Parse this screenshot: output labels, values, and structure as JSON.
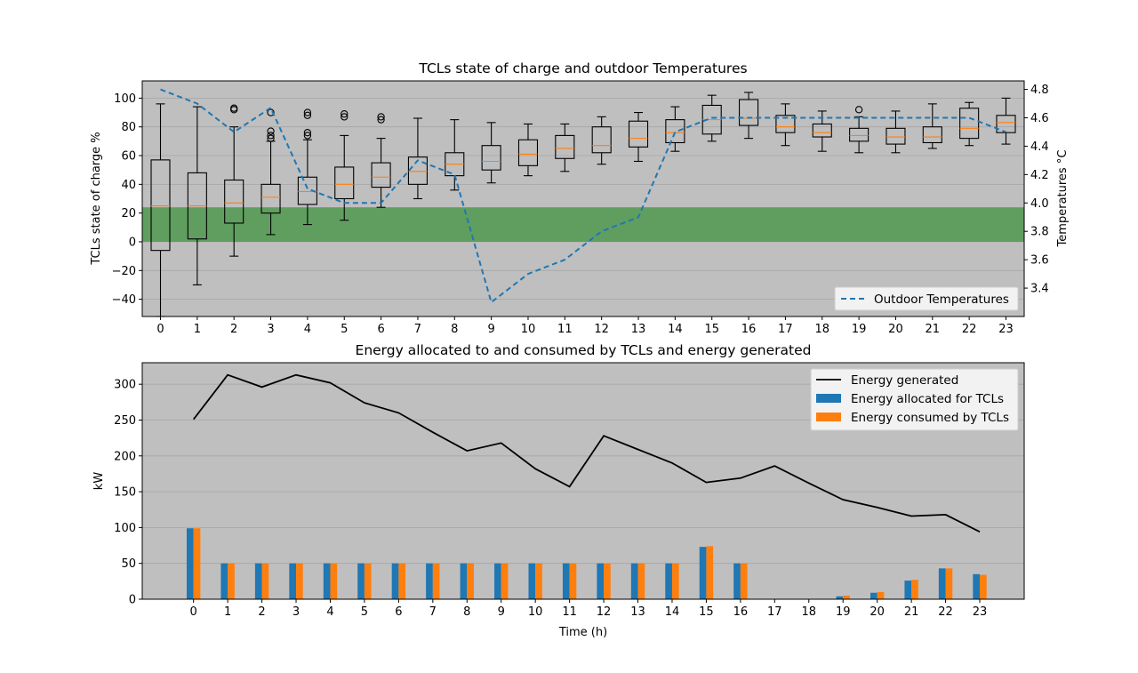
{
  "chart_data": [
    {
      "type": "box",
      "title": "TCLs state of charge and outdoor Temperatures",
      "xlabel": "",
      "ylabel": "TCLs state of charge %",
      "y2label": "Temperatures °C",
      "categories": [
        "0",
        "1",
        "2",
        "3",
        "4",
        "5",
        "6",
        "7",
        "8",
        "9",
        "10",
        "11",
        "12",
        "13",
        "14",
        "15",
        "16",
        "17",
        "18",
        "19",
        "20",
        "21",
        "22",
        "23"
      ],
      "ylim": [
        -52,
        112
      ],
      "y2lim": [
        3.2,
        4.86
      ],
      "yticks": [
        "−40",
        "−20",
        "0",
        "20",
        "40",
        "60",
        "80",
        "100"
      ],
      "y2ticks": [
        "3.4",
        "3.6",
        "3.8",
        "4.0",
        "4.2",
        "4.4",
        "4.6",
        "4.8"
      ],
      "band": {
        "from": 0,
        "to": 24,
        "color": "#5f9e5f"
      },
      "boxes": [
        {
          "whislo": -52,
          "q1": -6,
          "med": 25,
          "q3": 57,
          "whishi": 96,
          "fliers": []
        },
        {
          "whislo": -30,
          "q1": 2,
          "med": 25,
          "q3": 48,
          "whishi": 94,
          "fliers": []
        },
        {
          "whislo": -10,
          "q1": 13,
          "med": 27,
          "q3": 43,
          "whishi": 80,
          "fliers": [
            92,
            93
          ]
        },
        {
          "whislo": 5,
          "q1": 20,
          "med": 31,
          "q3": 40,
          "whishi": 70,
          "fliers": [
            72,
            74,
            77,
            90
          ]
        },
        {
          "whislo": 12,
          "q1": 26,
          "med": 35,
          "q3": 45,
          "whishi": 71,
          "fliers": [
            74,
            76,
            88,
            90
          ]
        },
        {
          "whislo": 15,
          "q1": 30,
          "med": 40,
          "q3": 52,
          "whishi": 74,
          "fliers": [
            87,
            89
          ]
        },
        {
          "whislo": 24,
          "q1": 38,
          "med": 45,
          "q3": 55,
          "whishi": 72,
          "fliers": [
            85,
            87
          ]
        },
        {
          "whislo": 30,
          "q1": 40,
          "med": 49,
          "q3": 59,
          "whishi": 86,
          "fliers": []
        },
        {
          "whislo": 36,
          "q1": 46,
          "med": 54,
          "q3": 62,
          "whishi": 85,
          "fliers": []
        },
        {
          "whislo": 41,
          "q1": 50,
          "med": 56,
          "q3": 67,
          "whishi": 83,
          "fliers": []
        },
        {
          "whislo": 46,
          "q1": 53,
          "med": 61,
          "q3": 71,
          "whishi": 82,
          "fliers": []
        },
        {
          "whislo": 49,
          "q1": 58,
          "med": 65,
          "q3": 74,
          "whishi": 82,
          "fliers": []
        },
        {
          "whislo": 54,
          "q1": 62,
          "med": 67,
          "q3": 80,
          "whishi": 87,
          "fliers": []
        },
        {
          "whislo": 56,
          "q1": 66,
          "med": 72,
          "q3": 84,
          "whishi": 90,
          "fliers": []
        },
        {
          "whislo": 63,
          "q1": 69,
          "med": 76,
          "q3": 85,
          "whishi": 94,
          "fliers": []
        },
        {
          "whislo": 70,
          "q1": 75,
          "med": 85,
          "q3": 95,
          "whishi": 102,
          "fliers": []
        },
        {
          "whislo": 72,
          "q1": 81,
          "med": 86,
          "q3": 99,
          "whishi": 104,
          "fliers": []
        },
        {
          "whislo": 67,
          "q1": 76,
          "med": 80,
          "q3": 88,
          "whishi": 96,
          "fliers": []
        },
        {
          "whislo": 63,
          "q1": 73,
          "med": 76,
          "q3": 82,
          "whishi": 91,
          "fliers": []
        },
        {
          "whislo": 62,
          "q1": 70,
          "med": 74,
          "q3": 79,
          "whishi": 87,
          "fliers": [
            92
          ]
        },
        {
          "whislo": 62,
          "q1": 68,
          "med": 73,
          "q3": 79,
          "whishi": 91,
          "fliers": []
        },
        {
          "whislo": 65,
          "q1": 69,
          "med": 73,
          "q3": 80,
          "whishi": 96,
          "fliers": []
        },
        {
          "whislo": 67,
          "q1": 72,
          "med": 79,
          "q3": 93,
          "whishi": 97,
          "fliers": []
        },
        {
          "whislo": 68,
          "q1": 76,
          "med": 83,
          "q3": 88,
          "whishi": 100,
          "fliers": []
        }
      ],
      "series": [
        {
          "name": "Outdoor Temperatures",
          "axis": "right",
          "style": "dashed",
          "color": "#1f77b4",
          "values": [
            4.8,
            4.7,
            4.5,
            4.67,
            4.1,
            4.0,
            4.0,
            4.3,
            4.2,
            3.3,
            3.5,
            3.6,
            3.8,
            3.9,
            4.5,
            4.6,
            4.6,
            4.6,
            4.6,
            4.6,
            4.6,
            4.6,
            4.6,
            4.5
          ]
        }
      ],
      "legend": "lower-right",
      "grid": "y"
    },
    {
      "type": "bar",
      "title": "Energy allocated to and consumed by TCLs and energy generated",
      "xlabel": "Time (h)",
      "ylabel": "kW",
      "categories": [
        "0",
        "1",
        "2",
        "3",
        "4",
        "5",
        "6",
        "7",
        "8",
        "9",
        "10",
        "11",
        "12",
        "13",
        "14",
        "15",
        "16",
        "17",
        "18",
        "19",
        "20",
        "21",
        "22",
        "23"
      ],
      "xlim": [
        -1.5,
        24.3
      ],
      "ylim": [
        0,
        330
      ],
      "yticks": [
        "0",
        "50",
        "100",
        "150",
        "200",
        "250",
        "300"
      ],
      "series": [
        {
          "name": "Energy generated",
          "kind": "line",
          "color": "#000000",
          "values": [
            251,
            313,
            296,
            313,
            302,
            274,
            260,
            233,
            207,
            218,
            182,
            157,
            228,
            209,
            190,
            163,
            169,
            186,
            162,
            139,
            128,
            116,
            118,
            94
          ]
        },
        {
          "name": "Energy allocated for TCLs",
          "kind": "bar",
          "color": "#1f77b4",
          "values": [
            99,
            50,
            50,
            50,
            50,
            50,
            50,
            50,
            50,
            50,
            50,
            50,
            50,
            50,
            50,
            73,
            50,
            0,
            0,
            4,
            9,
            26,
            43,
            35
          ]
        },
        {
          "name": "Energy consumed by TCLs",
          "kind": "bar",
          "color": "#ff7f0e",
          "values": [
            99,
            50,
            50,
            50,
            50,
            50,
            50,
            50,
            50,
            50,
            50,
            50,
            50,
            50,
            50,
            74,
            50,
            0,
            0,
            5,
            10,
            27,
            43,
            34
          ]
        }
      ],
      "legend": "upper-right",
      "grid": "y"
    }
  ]
}
